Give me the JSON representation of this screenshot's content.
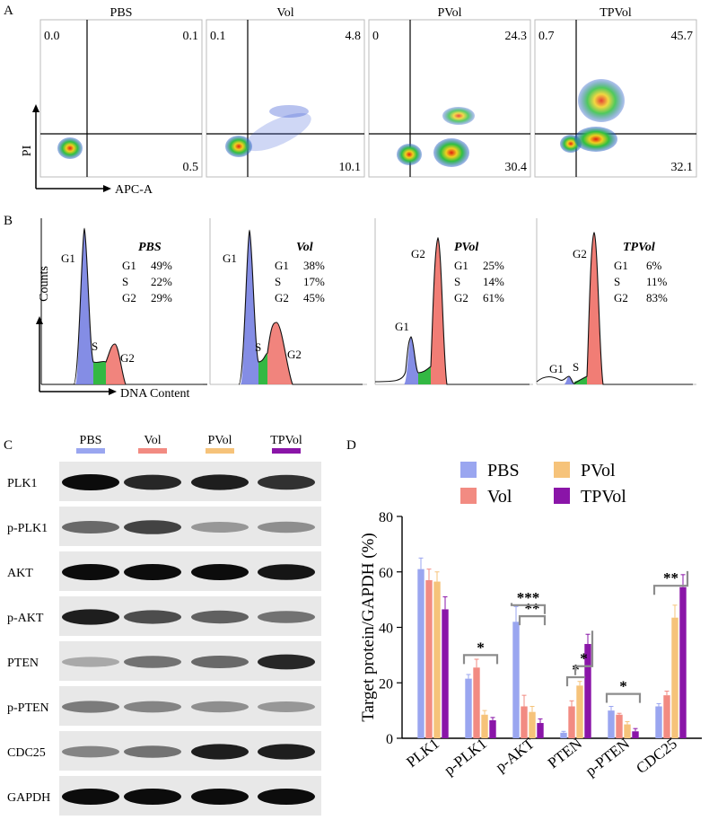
{
  "panels": {
    "a": "A",
    "b": "B",
    "c": "C",
    "d": "D"
  },
  "panel_a": {
    "y_axis": "PI",
    "x_axis": "APC-A",
    "plots": [
      {
        "title": "PBS",
        "q_ul": "0.0",
        "q_ur": "0.1",
        "q_lr": "0.5"
      },
      {
        "title": "Vol",
        "q_ul": "0.1",
        "q_ur": "4.8",
        "q_lr": "10.1"
      },
      {
        "title": "PVol",
        "q_ul": "0",
        "q_ur": "24.3",
        "q_lr": "30.4"
      },
      {
        "title": "TPVol",
        "q_ul": "0.7",
        "q_ur": "45.7",
        "q_lr": "32.1"
      }
    ]
  },
  "panel_b": {
    "y_axis": "Counts",
    "x_axis": "DNA Content",
    "plots": [
      {
        "title": "PBS",
        "g1": "49%",
        "s": "22%",
        "g2": "29%",
        "peak1": "G1",
        "peak_s": "S",
        "peak2": "G2"
      },
      {
        "title": "Vol",
        "g1": "38%",
        "s": "17%",
        "g2": "45%",
        "peak1": "G1",
        "peak_s": "S",
        "peak2": "G2"
      },
      {
        "title": "PVol",
        "g1": "25%",
        "s": "14%",
        "g2": "61%",
        "peak1": "G1",
        "peak_s": "S",
        "peak2": "G2"
      },
      {
        "title": "TPVol",
        "g1": "6%",
        "s": "11%",
        "g2": "83%",
        "peak1": "G1",
        "peak_s": "S",
        "peak2": "G2"
      }
    ],
    "row_labels": {
      "g1": "G1",
      "s": "S",
      "g2": "G2"
    }
  },
  "panel_c": {
    "lanes": [
      {
        "label": "PBS",
        "color": "#9aa6f0"
      },
      {
        "label": "Vol",
        "color": "#f28b82"
      },
      {
        "label": "PVol",
        "color": "#f6c37a"
      },
      {
        "label": "TPVol",
        "color": "#8a15a8"
      }
    ],
    "proteins": [
      "PLK1",
      "p-PLK1",
      "AKT",
      "p-AKT",
      "PTEN",
      "p-PTEN",
      "CDC25",
      "GAPDH"
    ]
  },
  "chart_data": {
    "type": "bar",
    "ylabel": "Target protein/GAPDH (%)",
    "xlabel": "",
    "ylim": [
      0,
      80
    ],
    "yticks": [
      0,
      20,
      40,
      60,
      80
    ],
    "categories": [
      "PLK1",
      "p-PLK1",
      "p-AKT",
      "PTEN",
      "p-PTEN",
      "CDC25"
    ],
    "series": [
      {
        "name": "PBS",
        "color": "#9aa6f0",
        "values": [
          61,
          21.5,
          42,
          2,
          10,
          11.5
        ],
        "errors": [
          4,
          1.5,
          5.5,
          0.5,
          1.5,
          1
        ]
      },
      {
        "name": "Vol",
        "color": "#f28b82",
        "values": [
          57,
          25.5,
          11.5,
          11.5,
          8.5,
          15.5
        ],
        "errors": [
          4,
          3,
          4,
          2,
          0.5,
          1.5
        ]
      },
      {
        "name": "PVol",
        "color": "#f6c37a",
        "values": [
          56.5,
          8.5,
          9.5,
          19,
          5,
          43.5
        ],
        "errors": [
          3.5,
          1.5,
          2,
          1.5,
          1,
          4.5
        ]
      },
      {
        "name": "TPVol",
        "color": "#8a15a8",
        "values": [
          46.5,
          6.5,
          5.5,
          34,
          2.5,
          54.5
        ],
        "errors": [
          4.5,
          1,
          1.5,
          3.5,
          1,
          4.5
        ]
      }
    ],
    "significance": [
      "*",
      "**",
      "***",
      "*",
      "*",
      "*",
      "**"
    ],
    "legend_position": "top"
  }
}
